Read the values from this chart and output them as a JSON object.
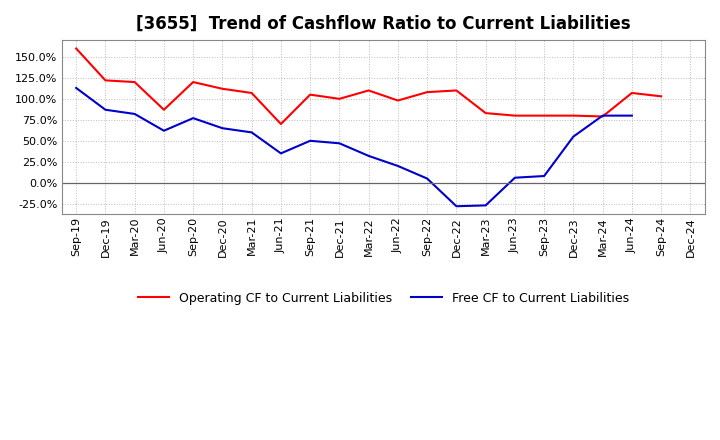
{
  "title": "[3655]  Trend of Cashflow Ratio to Current Liabilities",
  "x_labels": [
    "Sep-19",
    "Dec-19",
    "Mar-20",
    "Jun-20",
    "Sep-20",
    "Dec-20",
    "Mar-21",
    "Jun-21",
    "Sep-21",
    "Dec-21",
    "Mar-22",
    "Jun-22",
    "Sep-22",
    "Dec-22",
    "Mar-23",
    "Jun-23",
    "Sep-23",
    "Dec-23",
    "Mar-24",
    "Jun-24",
    "Sep-24",
    "Dec-24"
  ],
  "operating_cf": [
    160,
    122,
    120,
    87,
    120,
    112,
    107,
    70,
    105,
    100,
    110,
    98,
    108,
    110,
    83,
    80,
    80,
    80,
    79,
    107,
    103,
    null
  ],
  "free_cf": [
    113,
    87,
    82,
    62,
    77,
    65,
    60,
    35,
    50,
    47,
    32,
    20,
    5,
    -28,
    -27,
    6,
    8,
    55,
    80,
    80,
    null,
    null
  ],
  "ylim": [
    -37.5,
    170
  ],
  "yticks": [
    -25.0,
    0.0,
    25.0,
    50.0,
    75.0,
    100.0,
    125.0,
    150.0
  ],
  "operating_color": "#ff0000",
  "free_color": "#0000cc",
  "background_color": "#ffffff",
  "plot_bg_color": "#ffffff",
  "grid_color": "#bbbbbb",
  "legend_op": "Operating CF to Current Liabilities",
  "legend_free": "Free CF to Current Liabilities",
  "title_fontsize": 12,
  "tick_fontsize": 8,
  "legend_fontsize": 9
}
